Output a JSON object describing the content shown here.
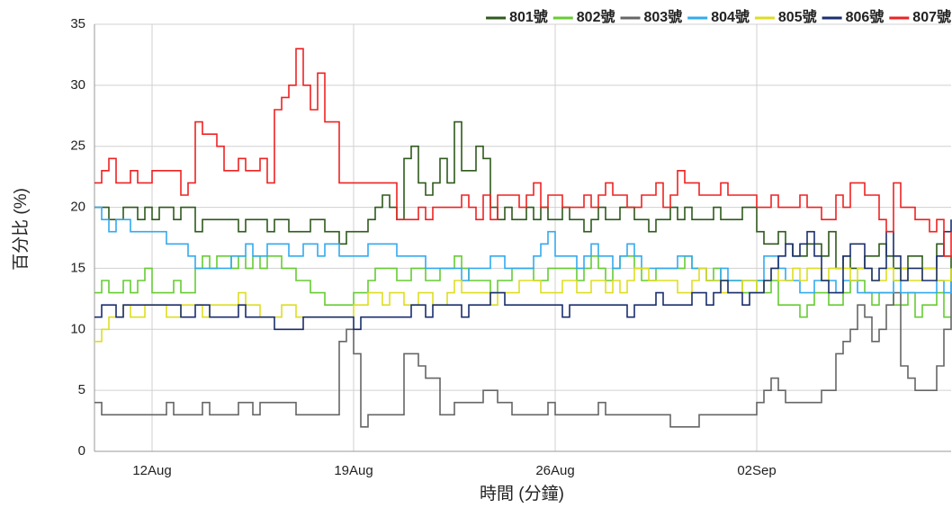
{
  "chart_data": {
    "type": "line",
    "step": true,
    "xlabel": "時間 (分鐘)",
    "ylabel": "百分比 (%)",
    "ylim": [
      0,
      35
    ],
    "yticks": [
      0,
      5,
      10,
      15,
      20,
      25,
      30,
      35
    ],
    "grid": true,
    "legend": "top-right",
    "categories": [
      null,
      null,
      null,
      null,
      null,
      null,
      null,
      null,
      "12Aug",
      null,
      null,
      null,
      null,
      null,
      null,
      null,
      null,
      null,
      null,
      null,
      null,
      null,
      null,
      null,
      null,
      null,
      null,
      null,
      null,
      null,
      null,
      null,
      null,
      null,
      null,
      null,
      "19Aug",
      null,
      null,
      null,
      null,
      null,
      null,
      null,
      null,
      null,
      null,
      null,
      null,
      null,
      null,
      null,
      null,
      null,
      null,
      null,
      null,
      null,
      null,
      null,
      null,
      null,
      null,
      null,
      "26Aug",
      null,
      null,
      null,
      null,
      null,
      null,
      null,
      null,
      null,
      null,
      null,
      null,
      null,
      null,
      null,
      null,
      null,
      null,
      null,
      null,
      null,
      null,
      null,
      null,
      null,
      null,
      null,
      "02Sep",
      null,
      null,
      null,
      null,
      null,
      null,
      null,
      null,
      null,
      null,
      null,
      null,
      null,
      null,
      null,
      null,
      null,
      null,
      null,
      null,
      null,
      null,
      null,
      null,
      null,
      null,
      null
    ],
    "series": [
      {
        "name": "801號",
        "color": "#2e5a1c",
        "values": [
          20,
          20,
          19,
          19,
          20,
          20,
          19,
          20,
          19,
          20,
          20,
          19,
          20,
          20,
          18,
          19,
          19,
          19,
          19,
          19,
          18,
          19,
          19,
          19,
          18,
          19,
          19,
          18,
          18,
          18,
          19,
          19,
          18,
          18,
          17,
          18,
          18,
          18,
          19,
          20,
          21,
          20,
          19,
          24,
          25,
          22,
          21,
          22,
          24,
          22,
          27,
          23,
          23,
          25,
          24,
          20,
          19,
          20,
          19,
          19,
          20,
          19,
          20,
          19,
          19,
          20,
          19,
          19,
          18,
          19,
          20,
          19,
          19,
          20,
          20,
          19,
          19,
          18,
          19,
          19,
          20,
          19,
          20,
          19,
          19,
          19,
          20,
          19,
          19,
          19,
          20,
          20,
          18,
          17,
          17,
          18,
          17,
          16,
          16,
          17,
          17,
          16,
          18,
          15,
          16,
          15,
          15,
          16,
          16,
          17,
          16,
          15,
          15,
          16,
          16,
          15,
          15,
          17,
          16,
          14
        ]
      },
      {
        "name": "802號",
        "color": "#66cc33",
        "values": [
          13,
          14,
          13,
          13,
          14,
          13,
          14,
          15,
          13,
          13,
          13,
          14,
          13,
          13,
          15,
          16,
          15,
          16,
          16,
          15,
          16,
          15,
          16,
          15,
          16,
          16,
          15,
          15,
          14,
          14,
          13,
          13,
          12,
          12,
          12,
          12,
          13,
          13,
          14,
          15,
          15,
          15,
          14,
          14,
          15,
          15,
          14,
          14,
          15,
          15,
          16,
          15,
          14,
          14,
          14,
          13,
          14,
          14,
          15,
          15,
          15,
          14,
          14,
          15,
          15,
          15,
          15,
          14,
          15,
          16,
          15,
          14,
          15,
          16,
          16,
          15,
          14,
          14,
          15,
          15,
          15,
          15,
          16,
          15,
          15,
          14,
          15,
          14,
          14,
          14,
          13,
          13,
          14,
          13,
          14,
          12,
          12,
          12,
          11,
          12,
          13,
          13,
          12,
          12,
          13,
          14,
          14,
          13,
          12,
          13,
          13,
          12,
          12,
          13,
          11,
          12,
          12,
          13,
          11,
          11
        ]
      },
      {
        "name": "803號",
        "color": "#666666",
        "values": [
          4,
          3,
          3,
          3,
          3,
          3,
          3,
          3,
          3,
          3,
          4,
          3,
          3,
          3,
          3,
          4,
          3,
          3,
          3,
          3,
          4,
          4,
          3,
          4,
          4,
          4,
          4,
          4,
          3,
          3,
          3,
          3,
          3,
          3,
          9,
          10,
          8,
          2,
          3,
          3,
          3,
          3,
          3,
          8,
          8,
          7,
          6,
          6,
          3,
          3,
          4,
          4,
          4,
          4,
          5,
          5,
          4,
          4,
          3,
          3,
          3,
          3,
          3,
          4,
          3,
          3,
          3,
          3,
          3,
          3,
          4,
          3,
          3,
          3,
          3,
          3,
          3,
          3,
          3,
          3,
          2,
          2,
          2,
          2,
          3,
          3,
          3,
          3,
          3,
          3,
          3,
          3,
          4,
          5,
          6,
          5,
          4,
          4,
          4,
          4,
          4,
          5,
          5,
          8,
          9,
          10,
          12,
          11,
          9,
          10,
          12,
          13,
          7,
          6,
          5,
          5,
          5,
          7,
          10,
          14
        ]
      },
      {
        "name": "804號",
        "color": "#33aaee",
        "values": [
          20,
          19,
          18,
          19,
          19,
          18,
          18,
          18,
          18,
          18,
          17,
          17,
          17,
          16,
          15,
          15,
          15,
          15,
          15,
          16,
          16,
          17,
          16,
          16,
          17,
          17,
          17,
          16,
          16,
          17,
          17,
          16,
          17,
          17,
          16,
          16,
          16,
          16,
          17,
          17,
          17,
          17,
          16,
          16,
          16,
          16,
          15,
          15,
          15,
          15,
          15,
          14,
          15,
          15,
          15,
          16,
          16,
          15,
          15,
          15,
          15,
          16,
          17,
          18,
          16,
          16,
          16,
          15,
          16,
          17,
          16,
          16,
          15,
          16,
          17,
          16,
          15,
          15,
          15,
          15,
          15,
          16,
          16,
          15,
          15,
          14,
          14,
          15,
          14,
          14,
          14,
          14,
          14,
          16,
          16,
          15,
          14,
          14,
          13,
          13,
          14,
          14,
          14,
          13,
          14,
          14,
          13,
          13,
          13,
          13,
          13,
          14,
          13,
          13,
          13,
          13,
          13,
          14,
          13,
          14
        ]
      },
      {
        "name": "805號",
        "color": "#dddd22",
        "values": [
          9,
          10,
          11,
          11,
          12,
          11,
          11,
          12,
          12,
          12,
          11,
          11,
          12,
          12,
          12,
          11,
          12,
          12,
          12,
          12,
          13,
          12,
          12,
          11,
          11,
          11,
          12,
          12,
          11,
          11,
          11,
          11,
          11,
          11,
          11,
          11,
          12,
          12,
          13,
          13,
          12,
          13,
          13,
          12,
          12,
          13,
          13,
          12,
          12,
          13,
          14,
          13,
          13,
          13,
          13,
          12,
          13,
          13,
          13,
          14,
          14,
          14,
          13,
          13,
          13,
          14,
          14,
          13,
          13,
          14,
          14,
          13,
          14,
          13,
          14,
          15,
          15,
          14,
          14,
          14,
          14,
          13,
          13,
          14,
          15,
          14,
          14,
          13,
          13,
          13,
          14,
          14,
          13,
          14,
          15,
          14,
          14,
          15,
          14,
          15,
          15,
          14,
          15,
          15,
          15,
          14,
          15,
          15,
          14,
          14,
          15,
          14,
          15,
          14,
          14,
          15,
          15,
          14,
          14,
          15
        ]
      },
      {
        "name": "806號",
        "color": "#1a2e6e",
        "values": [
          11,
          12,
          12,
          11,
          12,
          12,
          12,
          12,
          12,
          12,
          12,
          12,
          11,
          11,
          12,
          12,
          11,
          11,
          11,
          11,
          12,
          11,
          11,
          11,
          11,
          10,
          10,
          10,
          10,
          11,
          11,
          11,
          11,
          11,
          11,
          11,
          10,
          11,
          11,
          11,
          11,
          11,
          11,
          11,
          12,
          12,
          11,
          12,
          12,
          12,
          12,
          11,
          12,
          12,
          12,
          13,
          13,
          12,
          12,
          12,
          12,
          12,
          12,
          12,
          12,
          11,
          12,
          12,
          12,
          12,
          12,
          12,
          12,
          12,
          11,
          12,
          12,
          12,
          13,
          12,
          12,
          12,
          12,
          13,
          13,
          12,
          13,
          14,
          13,
          13,
          12,
          13,
          13,
          14,
          15,
          16,
          17,
          16,
          17,
          18,
          16,
          14,
          13,
          13,
          16,
          17,
          17,
          15,
          14,
          15,
          18,
          16,
          14,
          15,
          15,
          14,
          14,
          16,
          18,
          19
        ]
      },
      {
        "name": "807號",
        "color": "#ee2222",
        "values": [
          22,
          23,
          24,
          22,
          22,
          23,
          22,
          22,
          23,
          23,
          23,
          23,
          21,
          22,
          27,
          26,
          26,
          25,
          23,
          23,
          24,
          23,
          23,
          24,
          22,
          28,
          29,
          30,
          33,
          30,
          28,
          31,
          27,
          27,
          22,
          22,
          22,
          22,
          22,
          22,
          22,
          22,
          19,
          19,
          19,
          20,
          19,
          20,
          20,
          20,
          20,
          21,
          20,
          19,
          21,
          19,
          21,
          21,
          21,
          20,
          21,
          22,
          20,
          21,
          21,
          20,
          20,
          20,
          21,
          20,
          21,
          22,
          21,
          21,
          20,
          20,
          21,
          21,
          22,
          20,
          21,
          23,
          22,
          22,
          21,
          21,
          21,
          22,
          21,
          21,
          21,
          21,
          20,
          20,
          21,
          20,
          20,
          20,
          21,
          20,
          20,
          19,
          19,
          21,
          20,
          22,
          22,
          21,
          21,
          19,
          18,
          22,
          20,
          20,
          19,
          19,
          18,
          19,
          16,
          18
        ]
      }
    ]
  }
}
